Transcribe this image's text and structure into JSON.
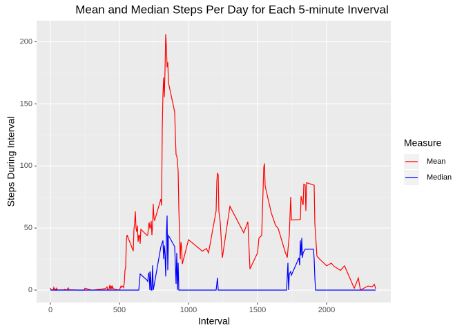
{
  "chart_data": {
    "type": "line",
    "title": "Mean and Median Steps Per Day for Each 5-minute Inverval",
    "x_label": "Interval",
    "y_label": "Steps During Interval",
    "legend_title": "Measure",
    "legend_position": "right",
    "grid": true,
    "xlim": [
      -100,
      2465
    ],
    "xticks": [
      0,
      500,
      1000,
      1500,
      2000
    ],
    "ylim": [
      -10,
      217
    ],
    "yticks": [
      0,
      50,
      100,
      150,
      200
    ],
    "series": [
      {
        "name": "Mean",
        "color": "#ff0000",
        "x": [
          0,
          5,
          10,
          15,
          20,
          25,
          30,
          35,
          40,
          45,
          50,
          55,
          100,
          105,
          110,
          115,
          120,
          125,
          130,
          135,
          140,
          145,
          150,
          200,
          245,
          250,
          300,
          320,
          340,
          400,
          410,
          415,
          420,
          425,
          430,
          435,
          440,
          445,
          450,
          455,
          500,
          505,
          510,
          515,
          520,
          525,
          530,
          535,
          540,
          545,
          550,
          555,
          600,
          605,
          610,
          615,
          620,
          625,
          630,
          635,
          640,
          645,
          650,
          655,
          700,
          705,
          710,
          715,
          720,
          725,
          730,
          735,
          740,
          745,
          750,
          755,
          800,
          805,
          810,
          815,
          820,
          825,
          830,
          835,
          840,
          845,
          850,
          855,
          900,
          905,
          910,
          915,
          920,
          925,
          930,
          935,
          940,
          945,
          950,
          955,
          1000,
          1100,
          1130,
          1145,
          1200,
          1205,
          1210,
          1215,
          1220,
          1230,
          1245,
          1300,
          1400,
          1430,
          1445,
          1500,
          1510,
          1530,
          1545,
          1550,
          1555,
          1600,
          1630,
          1650,
          1700,
          1715,
          1730,
          1740,
          1745,
          1800,
          1810,
          1815,
          1830,
          1835,
          1845,
          1850,
          1855,
          1900,
          1910,
          1915,
          1930,
          1945,
          2000,
          2035,
          2050,
          2100,
          2130,
          2200,
          2230,
          2245,
          2300,
          2330,
          2345,
          2350,
          2355
        ],
        "values": [
          1.7,
          0.3,
          0.1,
          0.2,
          0.1,
          2.1,
          0.5,
          0.9,
          0,
          1.5,
          0.3,
          0.1,
          0.3,
          0.7,
          0.2,
          0.3,
          0,
          1.1,
          1.8,
          0.2,
          0.2,
          0.4,
          0.3,
          0,
          0,
          1.5,
          0,
          0.2,
          0.5,
          1.2,
          2.6,
          0.1,
          0.3,
          0.9,
          4.1,
          0.7,
          3.5,
          0.8,
          3.1,
          1.1,
          0,
          1.6,
          3,
          2.2,
          3.3,
          3,
          2.1,
          6.1,
          16,
          18.3,
          39.5,
          44.5,
          31.5,
          49.3,
          53.8,
          63.5,
          50,
          47,
          52,
          39,
          44,
          44.2,
          37.4,
          49,
          44,
          44.5,
          50.5,
          54.5,
          49.9,
          50.9,
          55.7,
          44.3,
          52.3,
          69.5,
          57.8,
          56.2,
          73.4,
          68.2,
          129.4,
          157.5,
          171.2,
          155.4,
          177.3,
          206.2,
          195.9,
          179.6,
          183.4,
          167,
          143.5,
          124,
          109.1,
          108.1,
          103.7,
          95.9,
          66.2,
          45.2,
          24.8,
          38.8,
          34.9,
          21,
          40.6,
          31.4,
          33.5,
          30,
          63.9,
          87.6,
          94.5,
          92.8,
          63.4,
          54.5,
          26,
          67.5,
          46.2,
          55.1,
          17,
          30,
          42,
          44,
          98.7,
          102.1,
          83.9,
          62,
          52.3,
          49.5,
          30.7,
          26.2,
          44.5,
          75.1,
          56.5,
          56.8,
          56.9,
          75.6,
          68.5,
          85.3,
          84.7,
          63.8,
          86.5,
          84.9,
          84.5,
          53.5,
          27.4,
          25.5,
          19.6,
          21.7,
          19.5,
          15.9,
          19.6,
          1.5,
          9.8,
          0.1,
          3.3,
          2.6,
          4.7,
          3.3,
          1.1
        ]
      },
      {
        "name": "Median",
        "color": "#0000ff",
        "x": [
          0,
          640,
          650,
          700,
          705,
          710,
          715,
          720,
          725,
          730,
          735,
          740,
          745,
          800,
          815,
          820,
          825,
          830,
          835,
          840,
          845,
          850,
          855,
          900,
          905,
          910,
          915,
          920,
          925,
          930,
          1200,
          1210,
          1215,
          1710,
          1715,
          1720,
          1725,
          1730,
          1740,
          1745,
          1800,
          1805,
          1810,
          1815,
          1820,
          1825,
          1830,
          1845,
          1900,
          1905,
          1910,
          1915,
          1920,
          2355
        ],
        "values": [
          0,
          0,
          13,
          8,
          7,
          13,
          14,
          0,
          15,
          0,
          0,
          20,
          0,
          35,
          40,
          25,
          36,
          29,
          11,
          45,
          60,
          16,
          44,
          35,
          20,
          5,
          30,
          0,
          22,
          0,
          0,
          10,
          0,
          0,
          10,
          22,
          0,
          13,
          15,
          12,
          26,
          20,
          40,
          28,
          42,
          26,
          30,
          33,
          33,
          33,
          25,
          10,
          0,
          0
        ]
      }
    ]
  }
}
